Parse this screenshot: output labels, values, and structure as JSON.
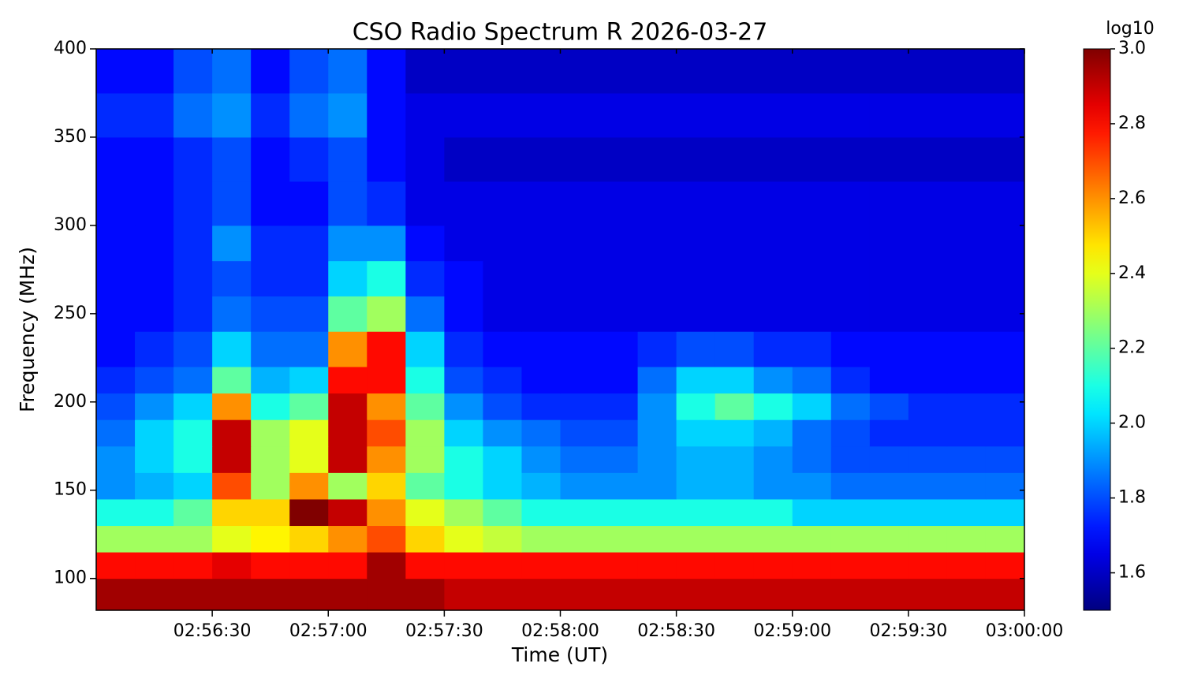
{
  "chart_data": {
    "type": "heatmap",
    "title": "CSO Radio Spectrum R 2026-03-27",
    "x_label": "Time (UT)",
    "y_label": "Frequency (MHz)",
    "colorbar_label": "log10",
    "colormap": "jet",
    "xlim": [
      "02:56:00",
      "03:00:00"
    ],
    "xticks": [
      "02:56:30",
      "02:57:00",
      "02:57:30",
      "02:58:00",
      "02:58:30",
      "02:59:00",
      "02:59:30",
      "03:00:00"
    ],
    "ylim": [
      82,
      400
    ],
    "yticks": [
      100,
      150,
      200,
      250,
      300,
      350,
      400
    ],
    "clim": [
      1.5,
      3.0
    ],
    "cticks": [
      1.6,
      1.8,
      {
        "value": 2,
        "label": "2.0"
      },
      2.2,
      2.4,
      2.6,
      2.8,
      {
        "value": 3,
        "label": "3.0"
      }
    ],
    "x_bins": [
      "02:56:00",
      "02:56:10",
      "02:56:20",
      "02:56:30",
      "02:56:40",
      "02:56:50",
      "02:57:00",
      "02:57:10",
      "02:57:20",
      "02:57:30",
      "02:57:40",
      "02:57:50",
      "02:58:00",
      "02:58:10",
      "02:58:20",
      "02:58:30",
      "02:58:40",
      "02:58:50",
      "02:59:00",
      "02:59:10",
      "02:59:20",
      "02:59:30",
      "02:59:40",
      "02:59:50",
      "03:00:00"
    ],
    "y_bins": [
      82,
      100,
      115,
      130,
      145,
      160,
      175,
      190,
      205,
      220,
      240,
      260,
      280,
      300,
      325,
      350,
      375,
      400
    ],
    "z": [
      [
        2.95,
        2.95,
        2.95,
        2.95,
        2.95,
        2.95,
        2.95,
        2.95,
        2.95,
        2.9,
        2.9,
        2.9,
        2.9,
        2.9,
        2.9,
        2.9,
        2.9,
        2.9,
        2.9,
        2.9,
        2.9,
        2.9,
        2.9,
        2.9
      ],
      [
        2.8,
        2.8,
        2.8,
        2.85,
        2.8,
        2.8,
        2.8,
        2.95,
        2.8,
        2.8,
        2.8,
        2.8,
        2.8,
        2.8,
        2.8,
        2.8,
        2.8,
        2.8,
        2.8,
        2.8,
        2.8,
        2.8,
        2.8,
        2.8
      ],
      [
        2.3,
        2.3,
        2.3,
        2.4,
        2.45,
        2.5,
        2.6,
        2.7,
        2.5,
        2.4,
        2.35,
        2.3,
        2.3,
        2.3,
        2.3,
        2.3,
        2.3,
        2.3,
        2.3,
        2.3,
        2.3,
        2.3,
        2.3,
        2.3
      ],
      [
        2.1,
        2.1,
        2.2,
        2.5,
        2.5,
        3.0,
        2.9,
        2.6,
        2.4,
        2.3,
        2.2,
        2.1,
        2.1,
        2.1,
        2.1,
        2.1,
        2.1,
        2.1,
        2.0,
        2.0,
        2.0,
        2.0,
        2.0,
        2.0
      ],
      [
        1.9,
        1.95,
        2.0,
        2.7,
        2.3,
        2.6,
        2.3,
        2.5,
        2.2,
        2.1,
        2.0,
        1.95,
        1.9,
        1.9,
        1.9,
        1.95,
        1.95,
        1.9,
        1.9,
        1.85,
        1.85,
        1.85,
        1.85,
        1.85
      ],
      [
        1.9,
        2.0,
        2.1,
        2.9,
        2.3,
        2.4,
        2.9,
        2.6,
        2.3,
        2.1,
        2.0,
        1.9,
        1.85,
        1.85,
        1.9,
        1.95,
        1.95,
        1.9,
        1.85,
        1.8,
        1.8,
        1.8,
        1.8,
        1.8
      ],
      [
        1.85,
        2.0,
        2.1,
        2.9,
        2.3,
        2.4,
        2.9,
        2.7,
        2.3,
        2.0,
        1.9,
        1.85,
        1.8,
        1.8,
        1.9,
        2.0,
        2.0,
        1.95,
        1.85,
        1.8,
        1.75,
        1.75,
        1.75,
        1.75
      ],
      [
        1.8,
        1.9,
        2.0,
        2.6,
        2.1,
        2.2,
        2.9,
        2.6,
        2.2,
        1.9,
        1.8,
        1.75,
        1.75,
        1.75,
        1.9,
        2.1,
        2.2,
        2.1,
        2.0,
        1.85,
        1.8,
        1.75,
        1.75,
        1.75
      ],
      [
        1.75,
        1.8,
        1.85,
        2.2,
        1.95,
        2.0,
        2.8,
        2.8,
        2.1,
        1.8,
        1.75,
        1.7,
        1.7,
        1.7,
        1.85,
        2.0,
        2.0,
        1.9,
        1.85,
        1.75,
        1.7,
        1.7,
        1.7,
        1.7
      ],
      [
        1.7,
        1.75,
        1.8,
        2.0,
        1.85,
        1.85,
        2.6,
        2.8,
        2.0,
        1.75,
        1.7,
        1.7,
        1.7,
        1.7,
        1.75,
        1.8,
        1.8,
        1.75,
        1.75,
        1.7,
        1.7,
        1.7,
        1.7,
        1.7
      ],
      [
        1.7,
        1.7,
        1.75,
        1.85,
        1.8,
        1.8,
        2.2,
        2.3,
        1.85,
        1.7,
        1.65,
        1.65,
        1.65,
        1.65,
        1.65,
        1.65,
        1.65,
        1.65,
        1.65,
        1.65,
        1.65,
        1.65,
        1.65,
        1.65
      ],
      [
        1.7,
        1.7,
        1.75,
        1.8,
        1.75,
        1.75,
        2.0,
        2.1,
        1.75,
        1.7,
        1.65,
        1.65,
        1.65,
        1.65,
        1.65,
        1.65,
        1.65,
        1.65,
        1.65,
        1.65,
        1.65,
        1.65,
        1.65,
        1.65
      ],
      [
        1.7,
        1.7,
        1.75,
        1.9,
        1.75,
        1.75,
        1.9,
        1.9,
        1.7,
        1.65,
        1.65,
        1.65,
        1.65,
        1.65,
        1.65,
        1.65,
        1.65,
        1.65,
        1.65,
        1.65,
        1.65,
        1.65,
        1.65,
        1.65
      ],
      [
        1.7,
        1.7,
        1.75,
        1.8,
        1.7,
        1.7,
        1.8,
        1.75,
        1.65,
        1.65,
        1.65,
        1.65,
        1.65,
        1.65,
        1.65,
        1.65,
        1.65,
        1.65,
        1.65,
        1.65,
        1.65,
        1.65,
        1.65,
        1.65
      ],
      [
        1.7,
        1.7,
        1.75,
        1.8,
        1.7,
        1.75,
        1.8,
        1.7,
        1.65,
        1.6,
        1.6,
        1.6,
        1.6,
        1.6,
        1.6,
        1.6,
        1.6,
        1.6,
        1.6,
        1.6,
        1.6,
        1.6,
        1.6,
        1.6
      ],
      [
        1.75,
        1.75,
        1.85,
        1.9,
        1.75,
        1.85,
        1.9,
        1.7,
        1.65,
        1.65,
        1.65,
        1.65,
        1.65,
        1.65,
        1.65,
        1.65,
        1.65,
        1.65,
        1.65,
        1.65,
        1.65,
        1.65,
        1.65,
        1.65
      ],
      [
        1.7,
        1.7,
        1.8,
        1.85,
        1.7,
        1.8,
        1.85,
        1.7,
        1.6,
        1.6,
        1.6,
        1.6,
        1.6,
        1.6,
        1.6,
        1.6,
        1.6,
        1.6,
        1.6,
        1.6,
        1.6,
        1.6,
        1.6,
        1.6
      ]
    ]
  }
}
